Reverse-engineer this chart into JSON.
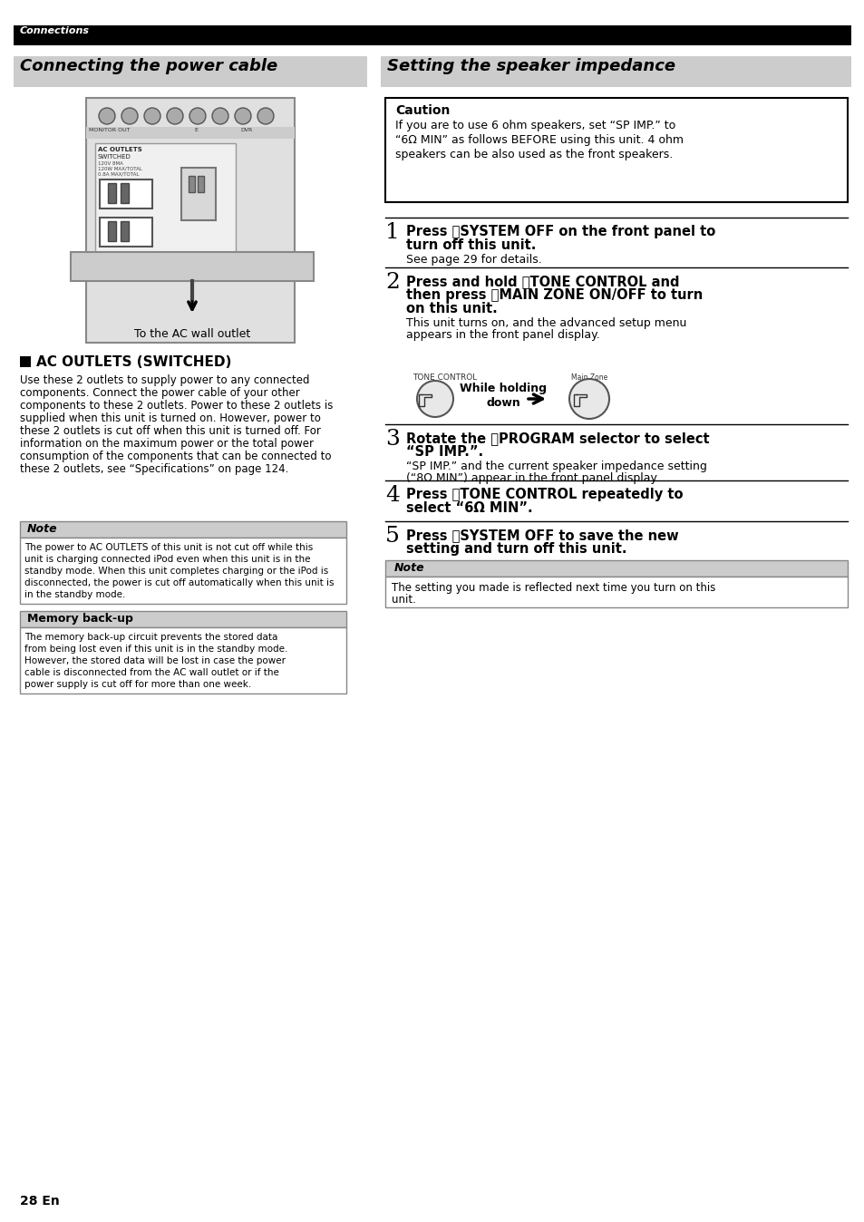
{
  "page_bg": "#ffffff",
  "header_bg": "#000000",
  "header_text": "Connections",
  "header_text_color": "#ffffff",
  "section_header_bg": "#cccccc",
  "left_title": "Connecting the power cable",
  "right_title": "Setting the speaker impedance",
  "caution_title": "Caution",
  "caution_text": "If you are to use 6 ohm speakers, set “SP IMP.” to\n“6Ω MIN” as follows BEFORE using this unit. 4 ohm\nspeakers can be also used as the front speakers.",
  "ac_outlets_title": "AC OUTLETS (SWITCHED)",
  "ac_outlets_lines": [
    "Use these 2 outlets to supply power to any connected",
    "components. Connect the power cable of your other",
    "components to these 2 outlets. Power to these 2 outlets is",
    "supplied when this unit is turned on. However, power to",
    "these 2 outlets is cut off when this unit is turned off. For",
    "information on the maximum power or the total power",
    "consumption of the components that can be connected to",
    "these 2 outlets, see “Specifications” on page 124."
  ],
  "note_label": "Note",
  "note_lines": [
    "The power to AC OUTLETS of this unit is not cut off while this",
    "unit is charging connected iPod even when this unit is in the",
    "standby mode. When this unit completes charging or the iPod is",
    "disconnected, the power is cut off automatically when this unit is",
    "in the standby mode."
  ],
  "memory_backup_title": "Memory back-up",
  "memory_backup_lines": [
    "The memory back-up circuit prevents the stored data",
    "from being lost even if this unit is in the standby mode.",
    "However, the stored data will be lost in case the power",
    "cable is disconnected from the AC wall outlet or if the",
    "power supply is cut off for more than one week."
  ],
  "image_caption": "To the AC wall outlet",
  "step1_num": "1",
  "step1_bold_lines": [
    "Press ⓁSYSTEM OFF on the front panel to",
    "turn off this unit."
  ],
  "step1_normal": "See page 29 for details.",
  "step2_num": "2",
  "step2_bold_lines": [
    "Press and hold ⓂTONE CONTROL and",
    "then press ⓈMAIN ZONE ON/OFF to turn",
    "on this unit."
  ],
  "step2_normal_lines": [
    "This unit turns on, and the advanced setup menu",
    "appears in the front panel display."
  ],
  "while_holding_label": "While holding\ndown",
  "tone_control_label": "TONE CONTROL",
  "step3_num": "3",
  "step3_bold_lines": [
    "Rotate the ⓃPROGRAM selector to select",
    "“SP IMP.”."
  ],
  "step3_normal_lines": [
    "“SP IMP.” and the current speaker impedance setting",
    "(“8Ω MIN”) appear in the front panel display."
  ],
  "step4_num": "4",
  "step4_bold_lines": [
    "Press ⓂTONE CONTROL repeatedly to",
    "select “6Ω MIN”."
  ],
  "step5_num": "5",
  "step5_bold_lines": [
    "Press ⓁSYSTEM OFF to save the new",
    "setting and turn off this unit."
  ],
  "note2_label": "Note",
  "note2_lines": [
    "The setting you made is reflected next time you turn on this",
    "unit."
  ],
  "page_num": "28 En"
}
